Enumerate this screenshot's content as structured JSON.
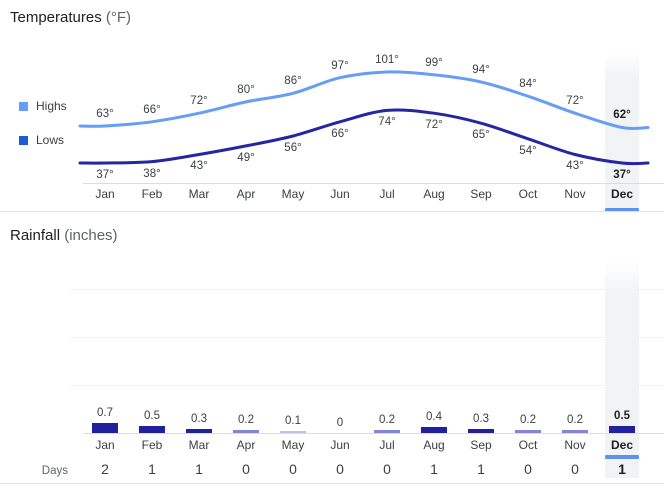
{
  "temperatures": {
    "title": "Temperatures",
    "unit": "(°F)",
    "legend": {
      "highs": "Highs",
      "lows": "Lows"
    }
  },
  "rainfall": {
    "title": "Rainfall",
    "unit": "(inches)",
    "days_label": "Days"
  },
  "months": [
    "Jan",
    "Feb",
    "Mar",
    "Apr",
    "May",
    "Jun",
    "Jul",
    "Aug",
    "Sep",
    "Oct",
    "Nov",
    "Dec"
  ],
  "highlighted_month_index": 11,
  "colors": {
    "highs_line": "#669df6",
    "lows_line": "#2626a3",
    "legend_highs_swatch": "#669df6",
    "legend_lows_swatch": "#1b5bd8",
    "bar_strong": "#21219f",
    "bar_light": "#8187d6",
    "bar_faint": "#bcc1ea",
    "highlight_underline": "#5b93f5",
    "text_primary": "#202124",
    "text_secondary": "#3c4043",
    "text_muted": "#5f6368",
    "axis": "#dadce0",
    "grid": "#f1f3f4"
  },
  "chart_data": [
    {
      "type": "line",
      "title": "Temperatures (°F)",
      "categories": [
        "Jan",
        "Feb",
        "Mar",
        "Apr",
        "May",
        "Jun",
        "Jul",
        "Aug",
        "Sep",
        "Oct",
        "Nov",
        "Dec"
      ],
      "series": [
        {
          "name": "Highs",
          "values": [
            63,
            66,
            72,
            80,
            86,
            97,
            101,
            99,
            94,
            84,
            72,
            62
          ]
        },
        {
          "name": "Lows",
          "values": [
            37,
            38,
            43,
            49,
            56,
            66,
            74,
            72,
            65,
            54,
            43,
            37
          ]
        }
      ],
      "value_suffix": "°",
      "legend_position": "left",
      "grid": false,
      "highlighted_category": "Dec"
    },
    {
      "type": "bar",
      "title": "Rainfall (inches)",
      "categories": [
        "Jan",
        "Feb",
        "Mar",
        "Apr",
        "May",
        "Jun",
        "Jul",
        "Aug",
        "Sep",
        "Oct",
        "Nov",
        "Dec"
      ],
      "values": [
        0.7,
        0.5,
        0.3,
        0.2,
        0.1,
        0,
        0.2,
        0.4,
        0.3,
        0.2,
        0.2,
        0.5
      ],
      "grid": true,
      "highlighted_category": "Dec",
      "extra_row": {
        "label": "Days",
        "values": [
          2,
          1,
          1,
          0,
          0,
          0,
          0,
          1,
          1,
          0,
          0,
          1
        ]
      }
    }
  ]
}
